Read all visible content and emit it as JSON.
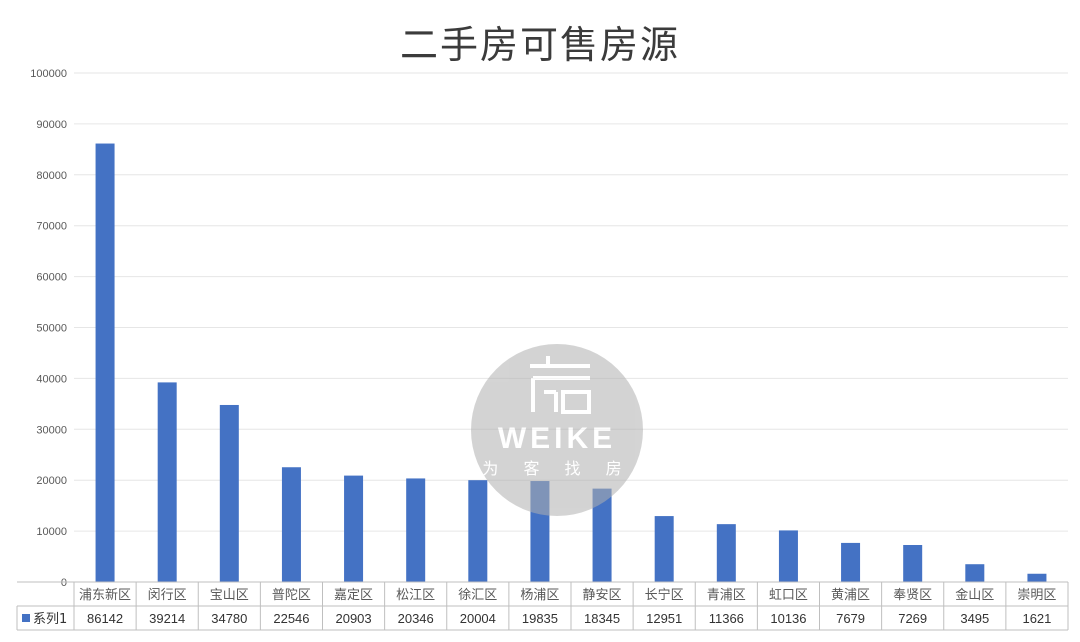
{
  "chart_data": {
    "type": "bar",
    "title": "二手房可售房源",
    "categories": [
      "浦东新区",
      "闵行区",
      "宝山区",
      "普陀区",
      "嘉定区",
      "松江区",
      "徐汇区",
      "杨浦区",
      "静安区",
      "长宁区",
      "青浦区",
      "虹口区",
      "黄浦区",
      "奉贤区",
      "金山区",
      "崇明区"
    ],
    "series": [
      {
        "name": "系列1",
        "values": [
          86142,
          39214,
          34780,
          22546,
          20903,
          20346,
          20004,
          19835,
          18345,
          12951,
          11366,
          10136,
          7679,
          7269,
          3495,
          1621
        ]
      }
    ],
    "ylim": [
      0,
      100000
    ],
    "yticks": [
      0,
      10000,
      20000,
      30000,
      40000,
      50000,
      60000,
      70000,
      80000,
      90000,
      100000
    ],
    "grid": true,
    "data_table": true,
    "bar_color": "#4472C4"
  },
  "watermark": {
    "brand": "WEIKE",
    "tagline": "为 客 找 房"
  }
}
